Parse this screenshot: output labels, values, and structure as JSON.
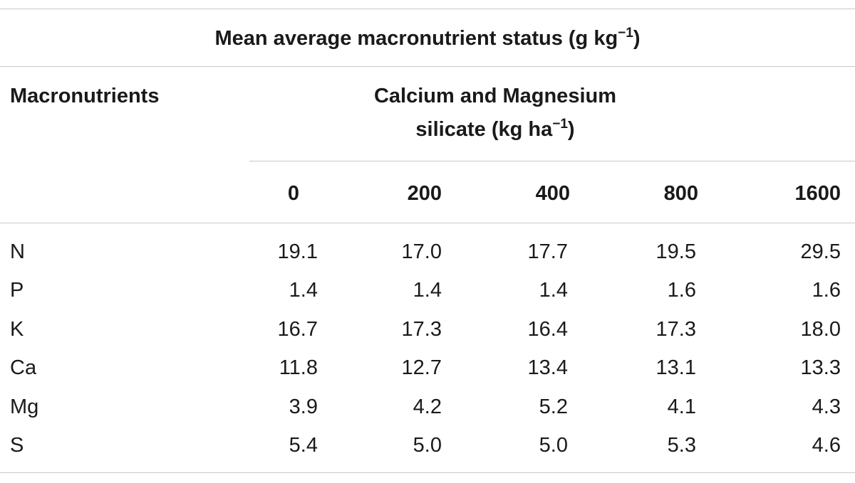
{
  "table": {
    "title": "Mean average macronutrient status (g kg",
    "title_sup": "−1",
    "title_end": ")",
    "row_header": "Macronutrients",
    "group_header_line1": "Calcium and Magnesium",
    "group_header_line2": "silicate (kg ha",
    "group_header_sup": "−1",
    "group_header_end": ")",
    "columns": [
      "0",
      "200",
      "400",
      "800",
      "1600"
    ],
    "rows": [
      {
        "label": "N",
        "values": [
          "19.1",
          "17.0",
          "17.7",
          "19.5",
          "29.5"
        ]
      },
      {
        "label": "P",
        "values": [
          "1.4",
          "1.4",
          "1.4",
          "1.6",
          "1.6"
        ]
      },
      {
        "label": "K",
        "values": [
          "16.7",
          "17.3",
          "16.4",
          "17.3",
          "18.0"
        ]
      },
      {
        "label": "Ca",
        "values": [
          "11.8",
          "12.7",
          "13.4",
          "13.1",
          "13.3"
        ]
      },
      {
        "label": "Mg",
        "values": [
          "3.9",
          "4.2",
          "5.2",
          "4.1",
          "4.3"
        ]
      },
      {
        "label": "S",
        "values": [
          "5.4",
          "5.0",
          "5.0",
          "5.3",
          "4.6"
        ]
      }
    ]
  }
}
